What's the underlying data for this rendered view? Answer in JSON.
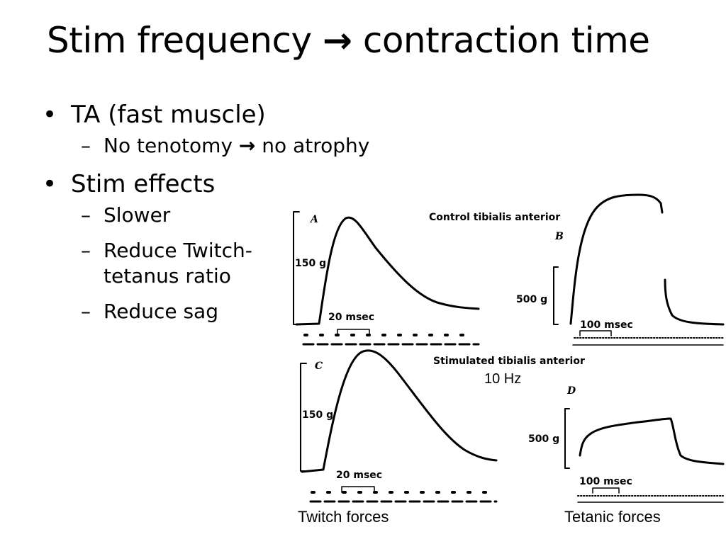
{
  "slide": {
    "title_left": "Stim frequency",
    "title_arrow": "→",
    "title_right": "contraction time"
  },
  "bullets": [
    {
      "text": "TA (fast muscle)",
      "sub": [
        {
          "dash": "–",
          "text_left": "No tenotomy",
          "arrow": "→",
          "text_right": "no atrophy"
        }
      ]
    },
    {
      "text": "Stim effects",
      "sub": [
        {
          "dash": "–",
          "text": "Slower"
        },
        {
          "dash": "–",
          "text": "Reduce Twitch-tetanus ratio"
        },
        {
          "dash": "–",
          "text": "Reduce sag"
        }
      ]
    }
  ],
  "figure": {
    "control_title": "Control tibialis anterior",
    "stimulated_title": "Stimulated tibialis anterior",
    "stim_annotation": "10 Hz",
    "panel_a": {
      "label": "A",
      "force_scale": "150 g",
      "time_scale": "20 msec"
    },
    "panel_b": {
      "label": "B",
      "force_scale": "500 g",
      "time_scale": "100 msec"
    },
    "panel_c": {
      "label": "C",
      "force_scale": "150 g",
      "time_scale": "20 msec"
    },
    "panel_d": {
      "label": "D",
      "force_scale": "500 g",
      "time_scale": "100 msec"
    },
    "caption_twitch": "Twitch forces",
    "caption_tetanic": "Tetanic forces"
  }
}
